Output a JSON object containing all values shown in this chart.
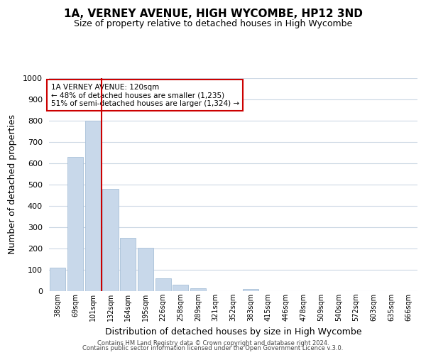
{
  "title": "1A, VERNEY AVENUE, HIGH WYCOMBE, HP12 3ND",
  "subtitle": "Size of property relative to detached houses in High Wycombe",
  "xlabel": "Distribution of detached houses by size in High Wycombe",
  "ylabel": "Number of detached properties",
  "bar_labels": [
    "38sqm",
    "69sqm",
    "101sqm",
    "132sqm",
    "164sqm",
    "195sqm",
    "226sqm",
    "258sqm",
    "289sqm",
    "321sqm",
    "352sqm",
    "383sqm",
    "415sqm",
    "446sqm",
    "478sqm",
    "509sqm",
    "540sqm",
    "572sqm",
    "603sqm",
    "635sqm",
    "666sqm"
  ],
  "bar_values": [
    110,
    630,
    800,
    480,
    250,
    205,
    60,
    30,
    15,
    0,
    0,
    10,
    0,
    0,
    0,
    0,
    0,
    0,
    0,
    0,
    0
  ],
  "bar_color": "#c8d8ea",
  "bar_edge_color": "#a8c0d8",
  "vline_x_index": 2.5,
  "vline_color": "#cc0000",
  "ylim": [
    0,
    1000
  ],
  "yticks": [
    0,
    100,
    200,
    300,
    400,
    500,
    600,
    700,
    800,
    900,
    1000
  ],
  "annotation_title": "1A VERNEY AVENUE: 120sqm",
  "annotation_line1": "← 48% of detached houses are smaller (1,235)",
  "annotation_line2": "51% of semi-detached houses are larger (1,324) →",
  "annotation_box_color": "#ffffff",
  "annotation_box_edge": "#cc0000",
  "footer1": "Contains HM Land Registry data © Crown copyright and database right 2024.",
  "footer2": "Contains public sector information licensed under the Open Government Licence v.3.0.",
  "background_color": "#ffffff",
  "grid_color": "#ccd8e4"
}
